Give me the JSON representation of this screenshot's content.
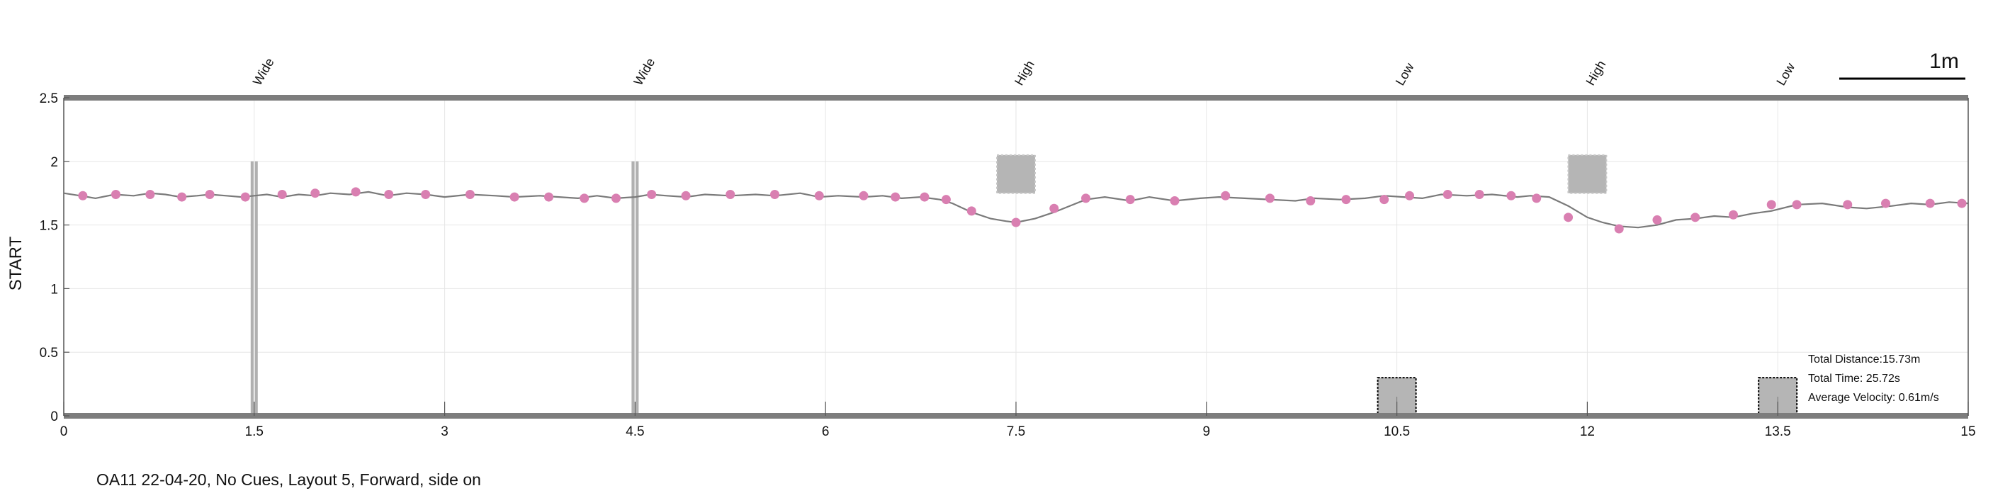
{
  "chart_data": {
    "type": "line",
    "ylabel": "START",
    "xlabel": "",
    "xlim": [
      0,
      15
    ],
    "ylim": [
      0,
      2.5
    ],
    "x_ticks": [
      "0",
      "1.5",
      "3",
      "4.5",
      "6",
      "7.5",
      "9",
      "10.5",
      "12",
      "13.5",
      "15"
    ],
    "y_ticks": [
      "0",
      "0.5",
      "1",
      "1.5",
      "2",
      "2.5"
    ],
    "grid": true,
    "scale_bar_label": "1m",
    "obstacles": [
      {
        "x": 1.5,
        "label": "Wide",
        "kind": "pole"
      },
      {
        "x": 4.5,
        "label": "Wide",
        "kind": "pole"
      },
      {
        "x": 7.5,
        "label": "High",
        "kind": "high"
      },
      {
        "x": 10.5,
        "label": "Low",
        "kind": "low"
      },
      {
        "x": 12.0,
        "label": "High",
        "kind": "high"
      },
      {
        "x": 13.5,
        "label": "Low",
        "kind": "low"
      }
    ],
    "series": [
      {
        "name": "trajectory",
        "color": "#7a7a7a",
        "x": [
          0,
          0.13,
          0.25,
          0.4,
          0.55,
          0.68,
          0.8,
          0.92,
          1.05,
          1.15,
          1.28,
          1.4,
          1.5,
          1.6,
          1.72,
          1.85,
          1.98,
          2.1,
          2.25,
          2.4,
          2.55,
          2.7,
          2.85,
          3.0,
          3.2,
          3.4,
          3.55,
          3.75,
          3.9,
          4.05,
          4.2,
          4.35,
          4.5,
          4.62,
          4.75,
          4.9,
          5.05,
          5.25,
          5.45,
          5.6,
          5.8,
          5.95,
          6.1,
          6.3,
          6.45,
          6.6,
          6.75,
          6.9,
          7.0,
          7.15,
          7.3,
          7.42,
          7.5,
          7.65,
          7.8,
          7.95,
          8.05,
          8.2,
          8.4,
          8.55,
          8.75,
          8.95,
          9.1,
          9.3,
          9.5,
          9.7,
          9.85,
          10.05,
          10.25,
          10.4,
          10.55,
          10.7,
          10.85,
          11.05,
          11.25,
          11.45,
          11.55,
          11.7,
          11.85,
          12.0,
          12.12,
          12.25,
          12.4,
          12.55,
          12.7,
          12.85,
          13.0,
          13.15,
          13.3,
          13.45,
          13.65,
          13.85,
          14.05,
          14.2,
          14.4,
          14.55,
          14.7,
          14.85,
          15.0
        ],
        "y": [
          1.75,
          1.73,
          1.71,
          1.74,
          1.73,
          1.75,
          1.74,
          1.72,
          1.73,
          1.74,
          1.73,
          1.72,
          1.73,
          1.74,
          1.72,
          1.74,
          1.73,
          1.75,
          1.74,
          1.76,
          1.73,
          1.75,
          1.74,
          1.72,
          1.74,
          1.73,
          1.72,
          1.73,
          1.72,
          1.71,
          1.73,
          1.71,
          1.72,
          1.74,
          1.73,
          1.72,
          1.74,
          1.73,
          1.74,
          1.73,
          1.75,
          1.72,
          1.73,
          1.72,
          1.73,
          1.71,
          1.72,
          1.7,
          1.67,
          1.6,
          1.55,
          1.53,
          1.52,
          1.55,
          1.6,
          1.66,
          1.7,
          1.72,
          1.69,
          1.72,
          1.69,
          1.71,
          1.72,
          1.71,
          1.7,
          1.69,
          1.71,
          1.7,
          1.71,
          1.73,
          1.72,
          1.71,
          1.74,
          1.73,
          1.74,
          1.72,
          1.73,
          1.72,
          1.65,
          1.56,
          1.52,
          1.49,
          1.48,
          1.5,
          1.54,
          1.55,
          1.57,
          1.56,
          1.59,
          1.61,
          1.66,
          1.67,
          1.64,
          1.63,
          1.65,
          1.67,
          1.66,
          1.68,
          1.67
        ]
      },
      {
        "name": "markers",
        "type": "scatter",
        "color": "#d97fb1",
        "x": [
          0.15,
          0.41,
          0.68,
          0.93,
          1.15,
          1.43,
          1.72,
          1.98,
          2.3,
          2.56,
          2.85,
          3.2,
          3.55,
          3.82,
          4.1,
          4.35,
          4.63,
          4.9,
          5.25,
          5.6,
          5.95,
          6.3,
          6.55,
          6.78,
          6.95,
          7.15,
          7.5,
          7.8,
          8.05,
          8.4,
          8.75,
          9.15,
          9.5,
          9.82,
          10.1,
          10.4,
          10.6,
          10.9,
          11.15,
          11.4,
          11.6,
          11.85,
          12.25,
          12.55,
          12.85,
          13.15,
          13.45,
          13.65,
          14.05,
          14.35,
          14.7,
          14.95
        ],
        "y": [
          1.73,
          1.74,
          1.74,
          1.72,
          1.74,
          1.72,
          1.74,
          1.75,
          1.76,
          1.74,
          1.74,
          1.74,
          1.72,
          1.72,
          1.71,
          1.71,
          1.74,
          1.73,
          1.74,
          1.74,
          1.73,
          1.73,
          1.72,
          1.72,
          1.7,
          1.61,
          1.52,
          1.63,
          1.71,
          1.7,
          1.69,
          1.73,
          1.71,
          1.69,
          1.7,
          1.7,
          1.73,
          1.74,
          1.74,
          1.73,
          1.71,
          1.56,
          1.47,
          1.54,
          1.56,
          1.58,
          1.66,
          1.66,
          1.66,
          1.67,
          1.67,
          1.67
        ]
      }
    ]
  },
  "stats": {
    "total_distance": "Total Distance:15.73m",
    "total_time": "Total Time: 25.72s",
    "average_velocity": "Average Velocity: 0.61m/s"
  },
  "caption": "OA11 22-04-20, No Cues, Layout 5, Forward, side on"
}
